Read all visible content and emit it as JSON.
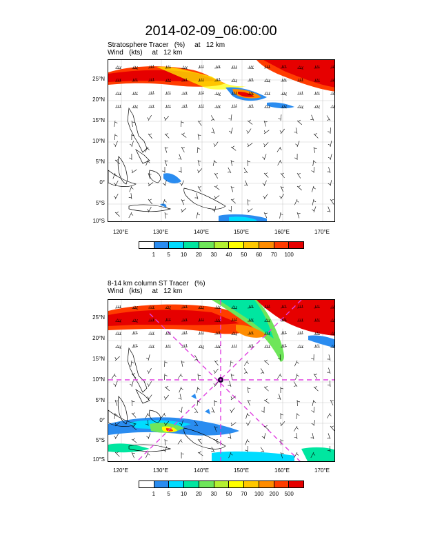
{
  "title": "2014-02-09_06:00:00",
  "panel1": {
    "title_line1": "Stratosphere Tracer   (%)     at   12 km",
    "title_line2": "Wind   (kts)     at   12 km",
    "colorbar": {
      "labels": [
        "1",
        "5",
        "10",
        "20",
        "30",
        "40",
        "50",
        "60",
        "70",
        "100"
      ],
      "colors": [
        "#ffffff",
        "#2a8cf0",
        "#00dcff",
        "#00e6a0",
        "#6ee65a",
        "#b4f032",
        "#ffff00",
        "#ffc800",
        "#ff8c00",
        "#ff3c00",
        "#e60000"
      ]
    }
  },
  "panel2": {
    "title_line1": "8-14 km column ST Tracer   (%)",
    "title_line2": "Wind   (kts)     at   12 km",
    "colorbar": {
      "labels": [
        "1",
        "5",
        "10",
        "20",
        "30",
        "50",
        "70",
        "100",
        "200",
        "500"
      ],
      "colors": [
        "#ffffff",
        "#2a8cf0",
        "#00dcff",
        "#00e6a0",
        "#6ee65a",
        "#b4f032",
        "#ffff00",
        "#ffc800",
        "#ff8c00",
        "#ff3c00",
        "#e60000"
      ]
    }
  },
  "lat_labels": [
    "25°N",
    "20°N",
    "15°N",
    "10°N",
    "5°N",
    "0°",
    "5°S",
    "10°S"
  ],
  "lon_labels": [
    "120°E",
    "130°E",
    "140°E",
    "150°E",
    "160°E",
    "170°E"
  ]
}
